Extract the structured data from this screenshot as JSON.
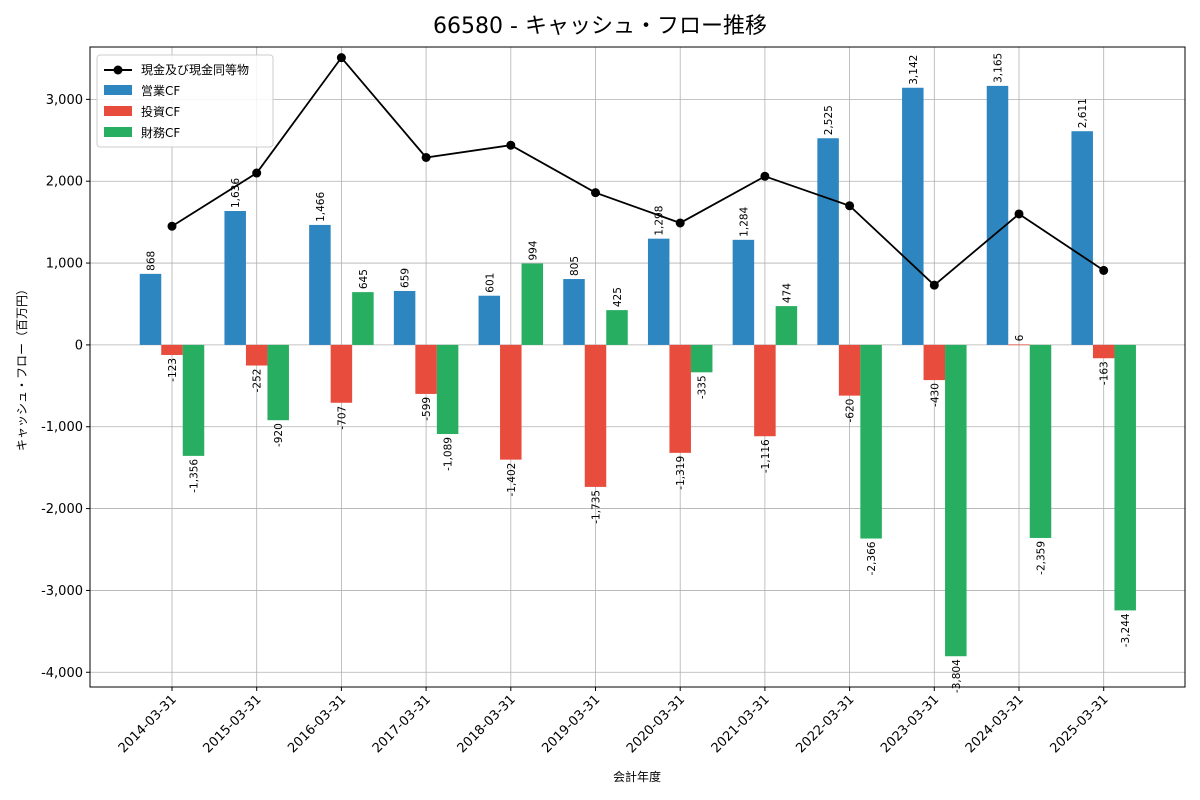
{
  "chart_data": {
    "type": "bar",
    "title": "66580 - キャッシュ・フロー推移",
    "xlabel": "会計年度",
    "ylabel": "キャッシュ・フロー（百万円）",
    "ylim": [
      -4180,
      3640
    ],
    "yticks": [
      -4000,
      -3000,
      -2000,
      -1000,
      0,
      1000,
      2000,
      3000
    ],
    "ytick_labels": [
      "-4,000",
      "-3,000",
      "-2,000",
      "-1,000",
      "0",
      "1,000",
      "2,000",
      "3,000"
    ],
    "grid": true,
    "legend_position": "top-left",
    "categories": [
      "2014-03-31",
      "2015-03-31",
      "2016-03-31",
      "2017-03-31",
      "2018-03-31",
      "2019-03-31",
      "2020-03-31",
      "2021-03-31",
      "2022-03-31",
      "2023-03-31",
      "2024-03-31",
      "2025-03-31"
    ],
    "series": [
      {
        "name": "営業CF",
        "kind": "bar",
        "color": "#2e86c1",
        "values": [
          868,
          1636,
          1466,
          659,
          601,
          805,
          1298,
          1284,
          2525,
          3142,
          3165,
          2611
        ],
        "labels": [
          "868",
          "1,636",
          "1,466",
          "659",
          "601",
          "805",
          "1,298",
          "1,284",
          "2,525",
          "3,142",
          "3,165",
          "2,611"
        ]
      },
      {
        "name": "投資CF",
        "kind": "bar",
        "color": "#e74c3c",
        "values": [
          -123,
          -252,
          -707,
          -599,
          -1402,
          -1735,
          -1319,
          -1116,
          -620,
          -430,
          6,
          -163
        ],
        "labels": [
          "-123",
          "-252",
          "-707",
          "-599",
          "-1,402",
          "-1,735",
          "-1,319",
          "-1,116",
          "-620",
          "-430",
          "6",
          "-163"
        ]
      },
      {
        "name": "財務CF",
        "kind": "bar",
        "color": "#27ae60",
        "values": [
          -1356,
          -920,
          645,
          -1089,
          994,
          425,
          -335,
          474,
          -2366,
          -3804,
          -2359,
          -3244
        ],
        "labels": [
          "-1,356",
          "-920",
          "645",
          "-1,089",
          "994",
          "425",
          "-335",
          "474",
          "-2,366",
          "-3,804",
          "-2,359",
          "-3,244"
        ]
      },
      {
        "name": "現金及び現金同等物",
        "kind": "line",
        "color": "#000000",
        "values": [
          1450,
          2100,
          3510,
          2290,
          2440,
          1860,
          1490,
          2060,
          1700,
          730,
          1600,
          910
        ]
      }
    ]
  }
}
